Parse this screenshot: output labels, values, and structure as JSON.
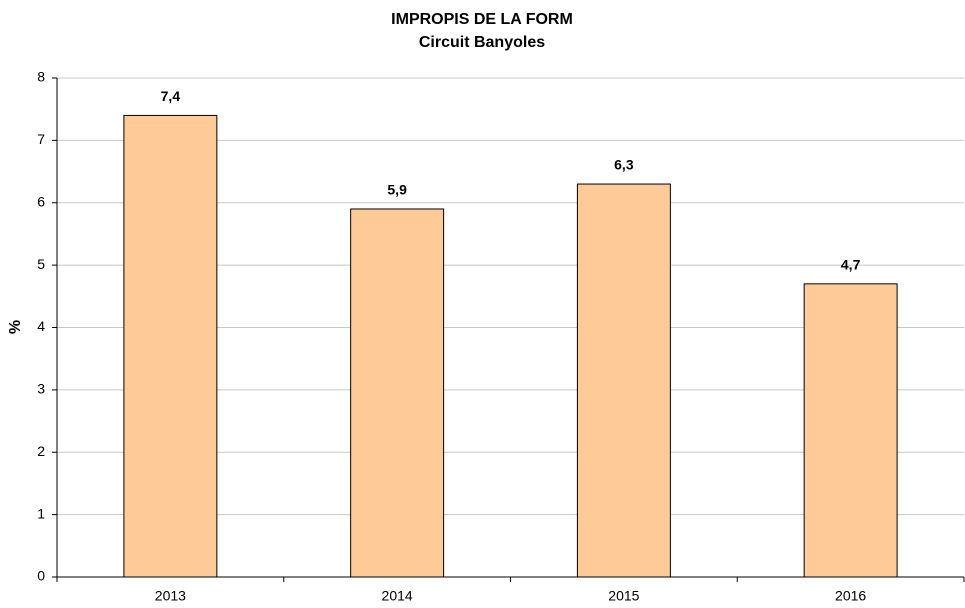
{
  "chart_data": {
    "type": "bar",
    "title": "IMPROPIS DE LA FORM",
    "subtitle": "Circuit Banyoles",
    "y_label": "%",
    "categories": [
      "2013",
      "2014",
      "2015",
      "2016"
    ],
    "values": [
      7.4,
      5.9,
      6.3,
      4.7
    ],
    "value_labels": [
      "7,4",
      "5,9",
      "6,3",
      "4,7"
    ],
    "color": "#fdca98",
    "ylim": [
      0,
      8
    ],
    "yticks": [
      0,
      1,
      2,
      3,
      4,
      5,
      6,
      7,
      8
    ],
    "grid": true
  }
}
